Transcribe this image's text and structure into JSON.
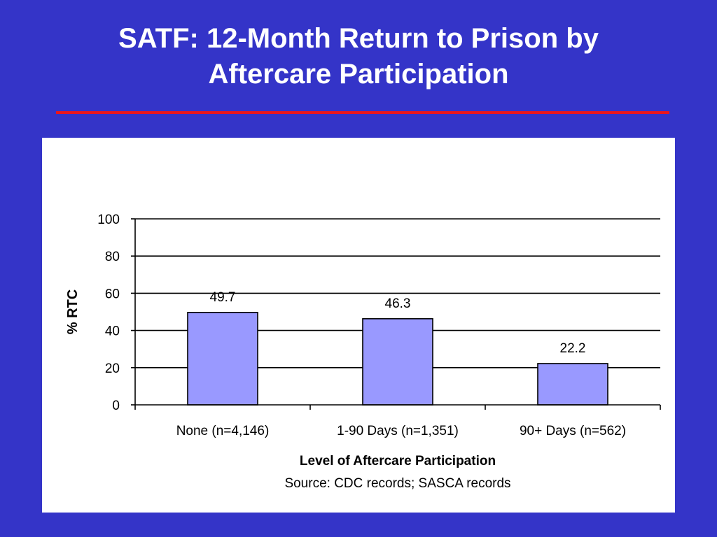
{
  "slide": {
    "title_line1": "SATF: 12-Month Return to Prison by",
    "title_line2": "Aftercare Participation",
    "background_color": "#3434c8",
    "title_color": "#ffffff",
    "rule_color": "#e8161e"
  },
  "chart_data": {
    "type": "bar",
    "title": "",
    "categories": [
      "None (n=4,146)",
      "1-90 Days (n=1,351)",
      "90+ Days (n=562)"
    ],
    "values": [
      49.7,
      46.3,
      22.2
    ],
    "data_labels": [
      "49.7",
      "46.3",
      "22.2"
    ],
    "xlabel": "Level of Aftercare Participation",
    "ylabel": "% RTC",
    "source": "Source: CDC records; SASCA records",
    "ylim": [
      0,
      100
    ],
    "yticks": [
      0,
      20,
      40,
      60,
      80,
      100
    ],
    "grid": true,
    "legend": "none",
    "bar_color": "#9999ff"
  }
}
